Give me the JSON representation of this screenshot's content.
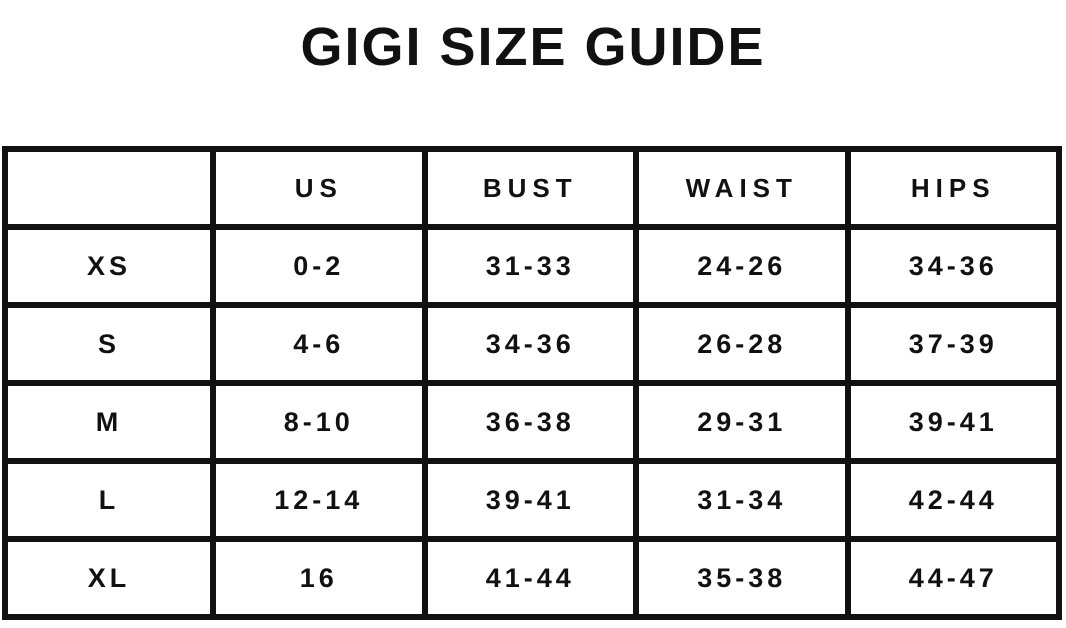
{
  "page": {
    "background": "#ffffff",
    "text_color": "#111111",
    "border_color": "#111111"
  },
  "title": "GIGI SIZE GUIDE",
  "table": {
    "headers": [
      "",
      "US",
      "BUST",
      "WAIST",
      "HIPS"
    ],
    "rows": [
      [
        "XS",
        "0-2",
        "31-33",
        "24-26",
        "34-36"
      ],
      [
        "S",
        "4-6",
        "34-36",
        "26-28",
        "37-39"
      ],
      [
        "M",
        "8-10",
        "36-38",
        "29-31",
        "39-41"
      ],
      [
        "L",
        "12-14",
        "39-41",
        "31-34",
        "42-44"
      ],
      [
        "XL",
        "16",
        "41-44",
        "35-38",
        "44-47"
      ]
    ]
  }
}
